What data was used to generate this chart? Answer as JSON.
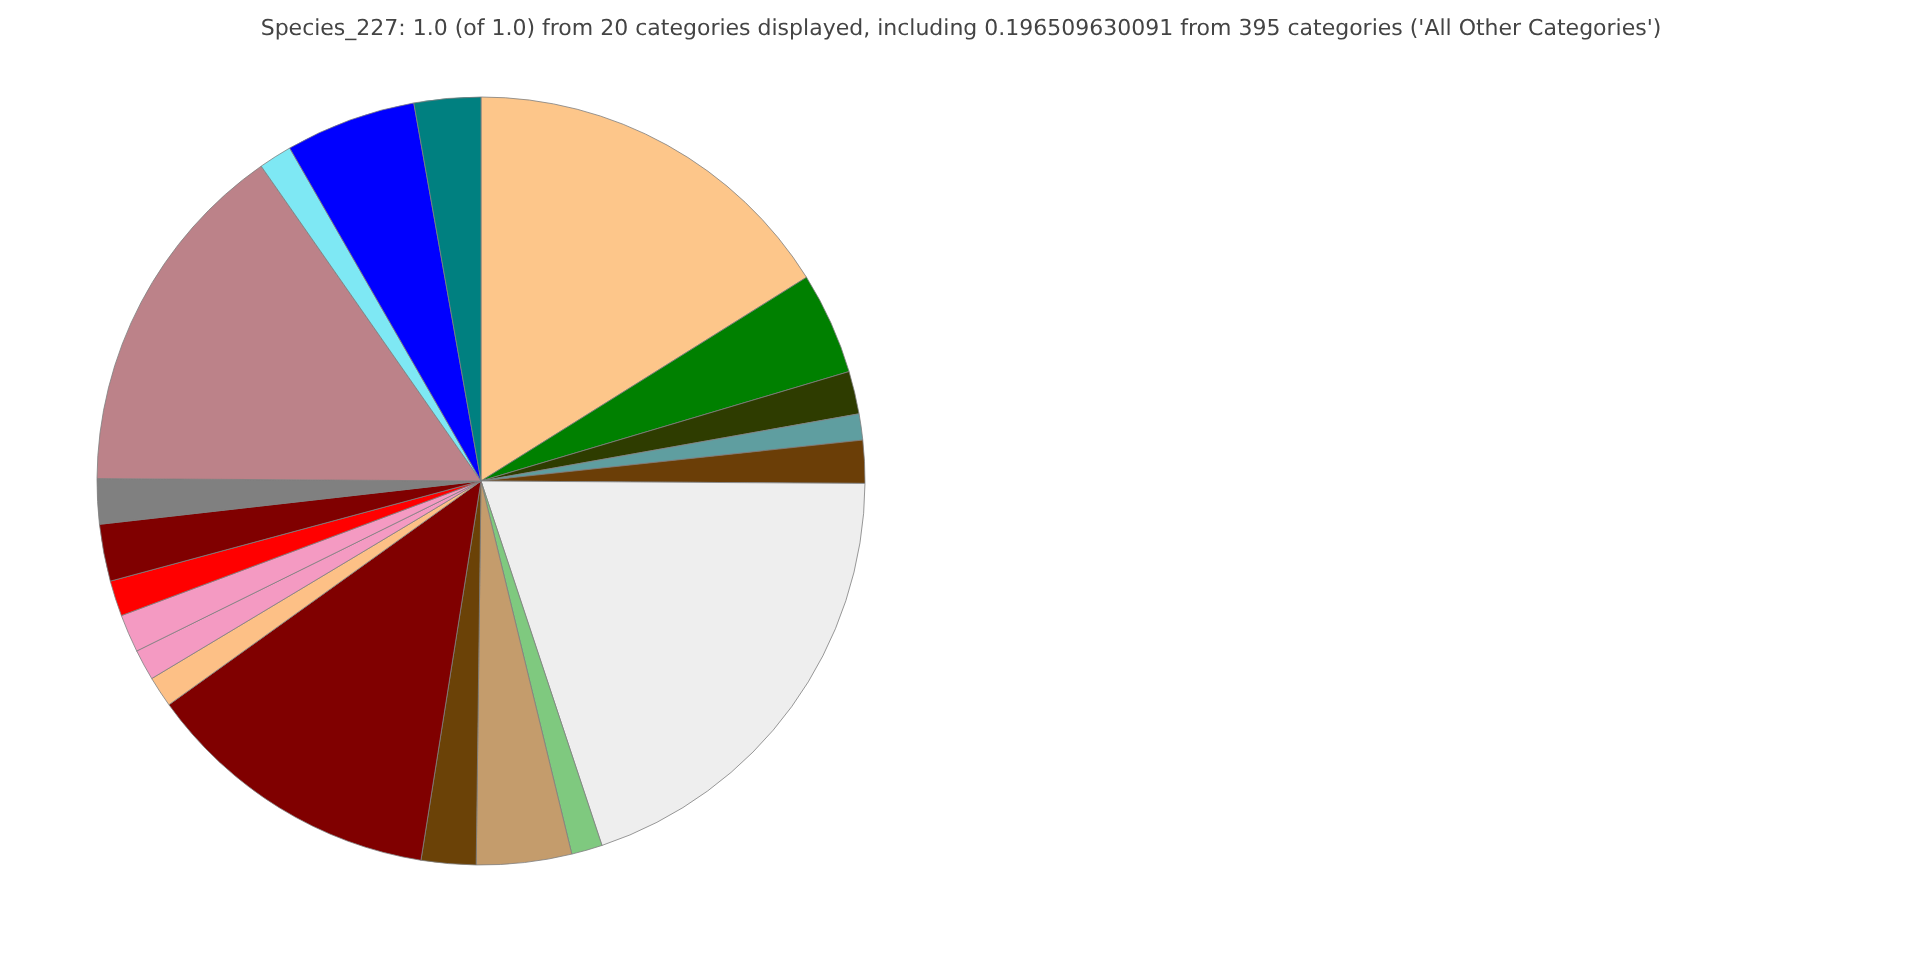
{
  "chart_data": {
    "type": "pie",
    "title": "Species_227: 1.0 (of 1.0) from 20 categories displayed, including 0.196509630091 from 395 categories ('All Other Categories')",
    "categories": [
      null,
      null,
      null,
      null,
      null,
      null,
      null,
      null,
      null,
      null,
      null,
      null,
      null,
      null,
      null,
      null,
      null,
      null,
      null,
      null
    ],
    "values": [
      16.1,
      4.3,
      1.8,
      1.1,
      1.8,
      19.8,
      1.3,
      4.0,
      2.3,
      12.6,
      1.3,
      1.3,
      1.6,
      1.5,
      2.4,
      1.9,
      15.2,
      1.4,
      5.5,
      2.8
    ],
    "colors": [
      "#fdc68a",
      "#008000",
      "#2e3c00",
      "#5f9ea0",
      "#6b3e07",
      "#eeeeee",
      "#7fc97f",
      "#c49c6c",
      "#6b4207",
      "#800000",
      "#fdc086",
      "#f49ac2",
      "#f49ac2",
      "#ff0000",
      "#800000",
      "#808080",
      "#bc8289",
      "#7ee8f4",
      "#0000ff",
      "#008080"
    ]
  }
}
